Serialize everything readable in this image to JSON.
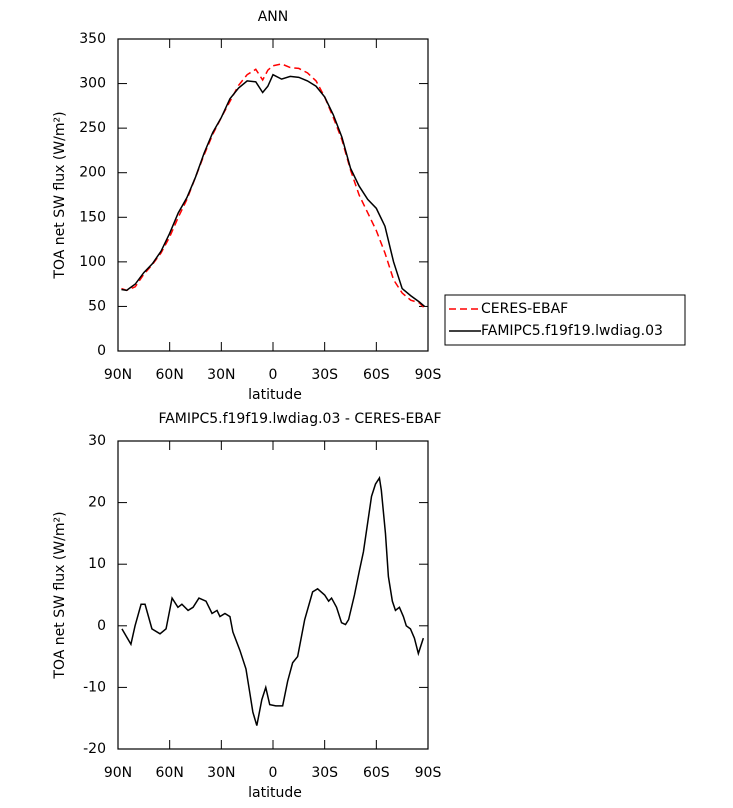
{
  "chart_data": [
    {
      "type": "line",
      "title": "ANN",
      "xlabel": "latitude",
      "ylabel": "TOA net SW flux (W/m²)",
      "x": [
        88,
        85,
        80,
        75,
        70,
        65,
        60,
        55,
        50,
        45,
        40,
        35,
        30,
        25,
        20,
        15,
        10,
        6,
        3,
        0,
        -5,
        -10,
        -15,
        -20,
        -25,
        -30,
        -35,
        -40,
        -45,
        -50,
        -55,
        -60,
        -65,
        -70,
        -75,
        -80,
        -85,
        -88
      ],
      "series": [
        {
          "name": "CERES-EBAF",
          "color": "#ff0000",
          "line_style": "dashed",
          "values": [
            70,
            68,
            72,
            86,
            97,
            110,
            128,
            150,
            170,
            195,
            220,
            243,
            262,
            280,
            298,
            310,
            316,
            304,
            315,
            320,
            322,
            318,
            317,
            312,
            303,
            285,
            262,
            237,
            203,
            175,
            155,
            135,
            110,
            80,
            65,
            57,
            54,
            48
          ]
        },
        {
          "name": "FAMIPC5.f19f19.lwdiag.03",
          "color": "#000000",
          "line_style": "solid",
          "values": [
            69,
            68,
            75,
            88,
            98,
            112,
            132,
            155,
            172,
            195,
            222,
            245,
            262,
            283,
            295,
            303,
            302,
            290,
            297,
            310,
            305,
            308,
            307,
            303,
            297,
            285,
            265,
            240,
            205,
            185,
            170,
            160,
            140,
            100,
            70,
            62,
            55,
            50
          ]
        }
      ],
      "xlim": [
        90,
        -90
      ],
      "xticks": [
        {
          "value": 90,
          "label": "90N"
        },
        {
          "value": 60,
          "label": "60N"
        },
        {
          "value": 30,
          "label": "30N"
        },
        0,
        {
          "value": -30,
          "label": "30S"
        },
        {
          "value": -60,
          "label": "60S"
        },
        {
          "value": -90,
          "label": "90S"
        }
      ],
      "ylim": [
        0,
        350
      ],
      "yticks": [
        0,
        50,
        100,
        150,
        200,
        250,
        300,
        350
      ],
      "legend": "right"
    },
    {
      "type": "line",
      "title": "FAMIPC5.f19f19.lwdiag.03 - CERES-EBAF",
      "xlabel": "latitude",
      "ylabel": "TOA net SW flux (W/m²)",
      "x": [
        87.7,
        82.5,
        80.1,
        76.6,
        74.3,
        70.3,
        65.6,
        62.1,
        58.6,
        55.2,
        52.9,
        49.3,
        46.4,
        43.0,
        38.9,
        35.4,
        32.5,
        30.8,
        27.9,
        25.0,
        23.3,
        19.2,
        15.7,
        13.4,
        11.7,
        9.4,
        6.5,
        4.2,
        1.9,
        -1.6,
        -5.6,
        -8.5,
        -11.4,
        -14.3,
        -18.4,
        -23.0,
        -25.9,
        -30.0,
        -32.3,
        -34.0,
        -36.9,
        -39.8,
        -42.1,
        -43.9,
        -47.3,
        -50.2,
        -52.5,
        -57.2,
        -59.5,
        -61.8,
        -62.9,
        -65.3,
        -67.0,
        -69.3,
        -71.1,
        -73.4,
        -75.7,
        -77.4,
        -79.8,
        -82.1,
        -84.4,
        -87.3
      ],
      "values": [
        -0.5,
        -3,
        0,
        3.5,
        3.5,
        -0.5,
        -1.3,
        -0.5,
        4.5,
        3,
        3.5,
        2.5,
        3,
        4.5,
        4,
        2,
        2.5,
        1.5,
        2,
        1.5,
        -1,
        -4,
        -7,
        -11,
        -14,
        -16.2,
        -12,
        -10,
        -12.8,
        -13,
        -13,
        -9,
        -6,
        -5,
        1,
        5.5,
        6,
        5,
        4,
        4.5,
        3,
        0.5,
        0.2,
        1,
        5,
        9,
        12,
        21,
        23,
        24,
        22,
        15,
        8,
        4,
        2.5,
        3,
        1.5,
        0,
        -0.5,
        -2,
        -4.5,
        -2
      ],
      "color": "#000000",
      "xlim": [
        90,
        -90
      ],
      "xticks": [
        {
          "value": 90,
          "label": "90N"
        },
        {
          "value": 60,
          "label": "60N"
        },
        {
          "value": 30,
          "label": "30N"
        },
        0,
        {
          "value": -30,
          "label": "30S"
        },
        {
          "value": -60,
          "label": "60S"
        },
        {
          "value": -90,
          "label": "90S"
        }
      ],
      "ylim": [
        -20,
        30
      ],
      "yticks": [
        -20,
        -10,
        0,
        10,
        20,
        30
      ]
    }
  ]
}
